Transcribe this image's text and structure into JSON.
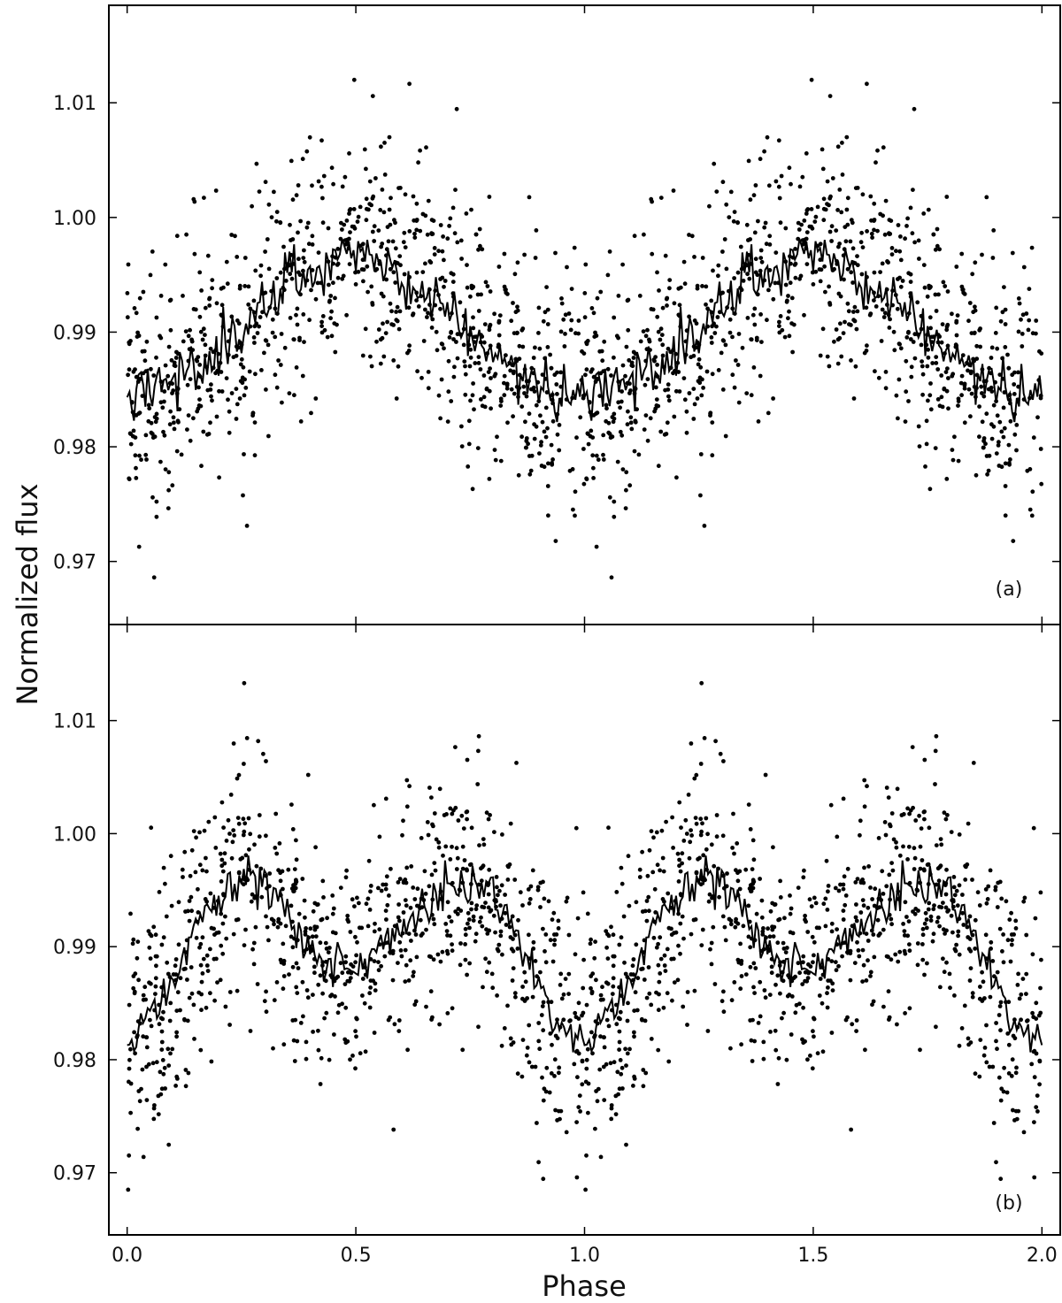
{
  "figure": {
    "xlabel": "Phase",
    "ylabel": "Normalized flux",
    "x_ticks": [
      "0.0",
      "0.5",
      "1.0",
      "1.5",
      "2.0"
    ],
    "y_ticks": [
      "0.97",
      "0.98",
      "0.99",
      "1.00",
      "1.01"
    ]
  },
  "chart_data": [
    {
      "type": "scatter",
      "panel_label": "(a)",
      "xlim": [
        -0.04,
        2.04
      ],
      "ylim": [
        0.9645,
        1.0185
      ],
      "xticks": [
        0.0,
        0.5,
        1.0,
        1.5,
        2.0
      ],
      "yticks": [
        0.97,
        0.98,
        0.99,
        1.0,
        1.01
      ],
      "grid": false,
      "scatter_points_description": "phase-folded photometric observations (dots), repeated over two cycles",
      "model_curve": {
        "x": [
          0.0,
          0.05,
          0.1,
          0.15,
          0.2,
          0.25,
          0.3,
          0.35,
          0.4,
          0.45,
          0.5,
          0.55,
          0.6,
          0.65,
          0.7,
          0.75,
          0.8,
          0.85,
          0.9,
          0.95,
          1.0,
          1.05,
          1.1,
          1.15,
          1.2,
          1.25,
          1.3,
          1.35,
          1.4,
          1.45,
          1.5,
          1.55,
          1.6,
          1.65,
          1.7,
          1.75,
          1.8,
          1.85,
          1.9,
          1.95,
          2.0
        ],
        "y": [
          0.9845,
          0.985,
          0.986,
          0.987,
          0.988,
          0.9895,
          0.992,
          0.9945,
          0.9955,
          0.9965,
          0.9975,
          0.996,
          0.9945,
          0.9935,
          0.992,
          0.989,
          0.988,
          0.987,
          0.9855,
          0.9845,
          0.9845,
          0.985,
          0.986,
          0.987,
          0.988,
          0.9895,
          0.992,
          0.9945,
          0.9955,
          0.9965,
          0.9975,
          0.996,
          0.9945,
          0.9935,
          0.992,
          0.989,
          0.988,
          0.987,
          0.9855,
          0.9845,
          0.9845
        ]
      }
    },
    {
      "type": "scatter",
      "panel_label": "(b)",
      "xlim": [
        -0.04,
        2.04
      ],
      "ylim": [
        0.9645,
        1.0185
      ],
      "xticks": [
        0.0,
        0.5,
        1.0,
        1.5,
        2.0
      ],
      "yticks": [
        0.97,
        0.98,
        0.99,
        1.0,
        1.01
      ],
      "grid": false,
      "scatter_points_description": "phase-folded photometric observations (dots), repeated over two cycles",
      "model_curve": {
        "x": [
          0.0,
          0.05,
          0.1,
          0.15,
          0.2,
          0.25,
          0.3,
          0.35,
          0.4,
          0.45,
          0.5,
          0.55,
          0.6,
          0.65,
          0.7,
          0.75,
          0.8,
          0.85,
          0.9,
          0.95,
          1.0,
          1.05,
          1.1,
          1.15,
          1.2,
          1.25,
          1.3,
          1.35,
          1.4,
          1.45,
          1.5,
          1.55,
          1.6,
          1.65,
          1.7,
          1.75,
          1.8,
          1.85,
          1.9,
          1.95,
          2.0
        ],
        "y": [
          0.9815,
          0.984,
          0.987,
          0.992,
          0.9945,
          0.9965,
          0.996,
          0.992,
          0.9895,
          0.9885,
          0.988,
          0.99,
          0.992,
          0.9935,
          0.9965,
          0.996,
          0.9945,
          0.991,
          0.9855,
          0.983,
          0.9815,
          0.984,
          0.987,
          0.992,
          0.9945,
          0.9965,
          0.996,
          0.992,
          0.9895,
          0.9885,
          0.988,
          0.99,
          0.992,
          0.9935,
          0.9965,
          0.996,
          0.9945,
          0.991,
          0.9855,
          0.983,
          0.9815
        ]
      }
    }
  ]
}
